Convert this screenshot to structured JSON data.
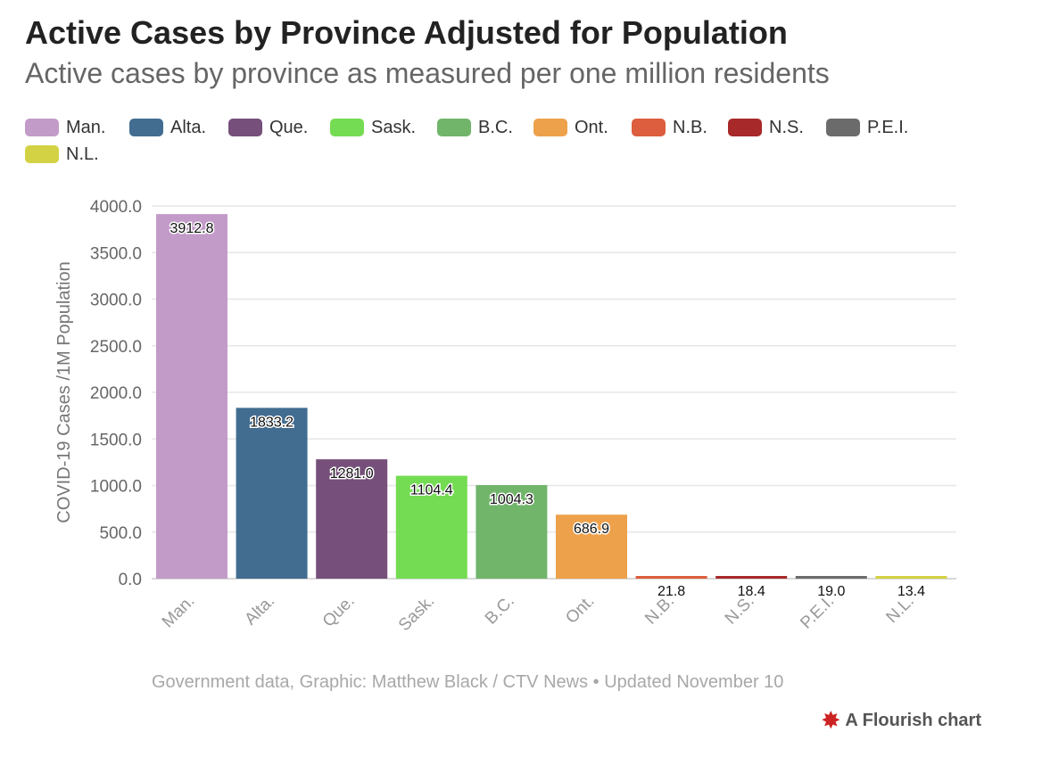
{
  "header": {
    "title": "Active Cases by Province Adjusted for Population",
    "subtitle": "Active cases by province as measured per one million residents"
  },
  "footer": {
    "source": "Government data, Graphic: Matthew Black / CTV News • Updated November 10",
    "brand": "A Flourish chart"
  },
  "chart_data": {
    "type": "bar",
    "categories": [
      "Man.",
      "Alta.",
      "Que.",
      "Sask.",
      "B.C.",
      "Ont.",
      "N.B.",
      "N.S.",
      "P.E.I.",
      "N.L."
    ],
    "values": [
      3912.8,
      1833.2,
      1281.0,
      1104.4,
      1004.3,
      686.9,
      21.8,
      18.4,
      19.0,
      13.4
    ],
    "value_labels": [
      "3912.8",
      "1833.2",
      "1281.0",
      "1104.4",
      "1004.3",
      "686.9",
      "21.8",
      "18.4",
      "19.0",
      "13.4"
    ],
    "colors": [
      "#c39bc9",
      "#426d91",
      "#764f7a",
      "#74dc52",
      "#71b56b",
      "#eda14b",
      "#dc5e3e",
      "#a8292a",
      "#6b6b6b",
      "#d3d244"
    ],
    "ylabel": "COVID-19 Cases /1M Population",
    "xlabel": "",
    "ylim": [
      0,
      4000
    ],
    "yticks": [
      0,
      500,
      1000,
      1500,
      2000,
      2500,
      3000,
      3500,
      4000
    ],
    "ytick_labels": [
      "0.0",
      "500.0",
      "1000.0",
      "1500.0",
      "2000.0",
      "2500.0",
      "3000.0",
      "3500.0",
      "4000.0"
    ],
    "grid": true,
    "legend_position": "top-left"
  }
}
